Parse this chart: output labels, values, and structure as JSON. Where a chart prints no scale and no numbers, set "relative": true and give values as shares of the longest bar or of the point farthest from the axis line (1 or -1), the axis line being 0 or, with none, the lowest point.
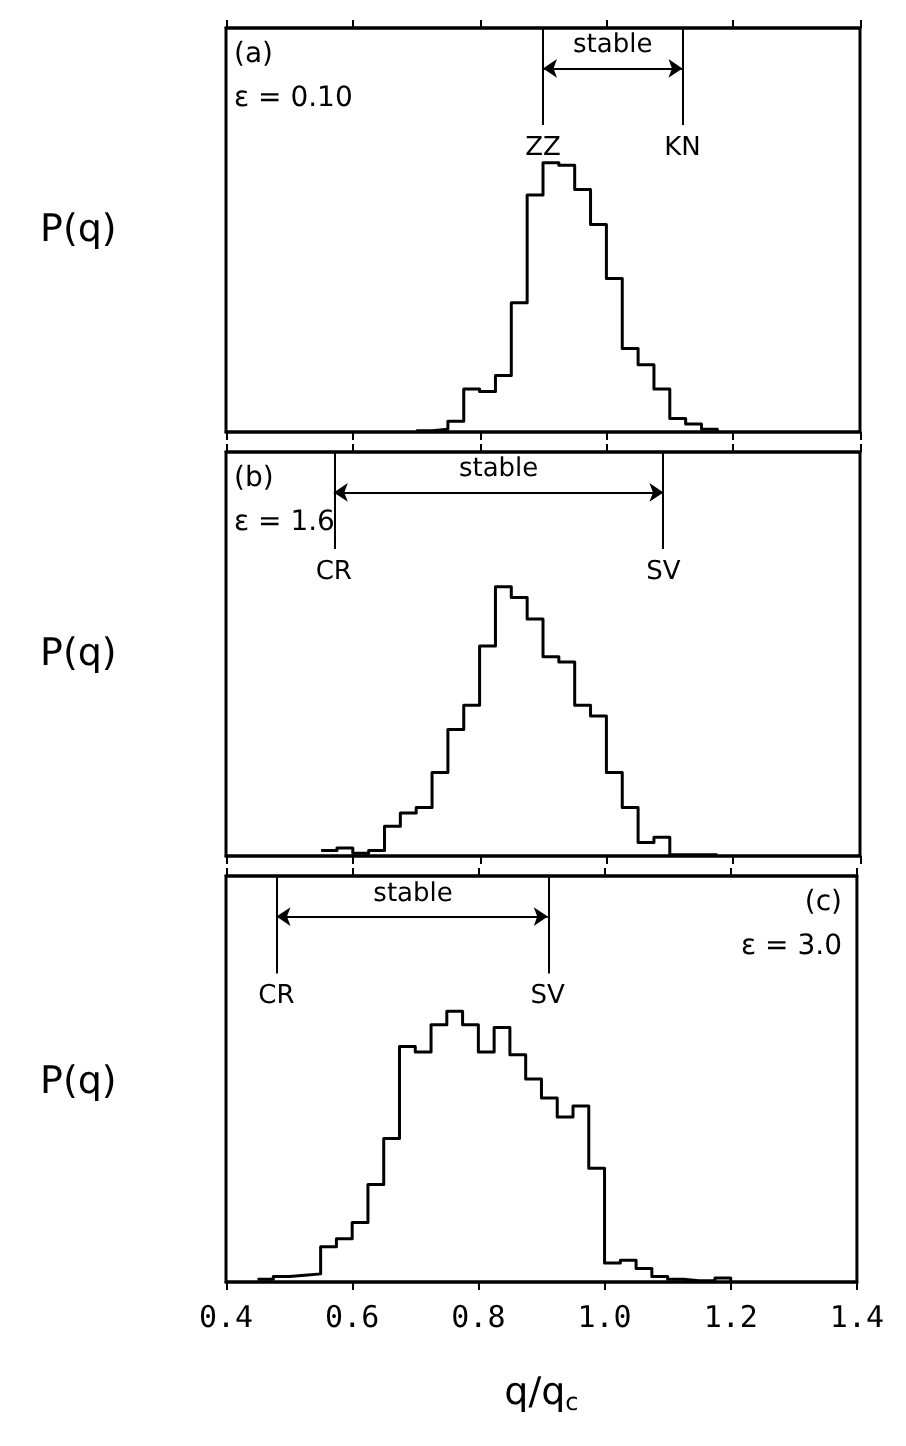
{
  "chart_data": [
    {
      "type": "step",
      "relative": true,
      "color": "#000000",
      "ylabel": "P(q)",
      "xlim": [
        0.4,
        1.4
      ],
      "xticks": [
        0.4,
        0.6,
        0.8,
        1.0,
        1.2,
        1.4
      ],
      "tick_labels": false,
      "x": [
        0.7,
        0.725,
        0.75,
        0.775,
        0.8,
        0.825,
        0.85,
        0.875,
        0.9,
        0.925,
        0.95,
        0.975,
        1.0,
        1.025,
        1.05,
        1.075,
        1.1,
        1.125,
        1.15,
        1.175
      ],
      "values": [
        0.005,
        0.01,
        0.04,
        0.16,
        0.15,
        0.21,
        0.48,
        0.88,
        1.0,
        0.99,
        0.9,
        0.77,
        0.57,
        0.31,
        0.25,
        0.16,
        0.05,
        0.03,
        0.01,
        0
      ],
      "ref_lines": [
        {
          "axis": "x",
          "value": 0.9,
          "label": "ZZ"
        },
        {
          "axis": "x",
          "value": 1.12,
          "label": "KN"
        }
      ],
      "annotations": [
        "(a)",
        "ε = 0.10",
        "stable"
      ]
    },
    {
      "type": "step",
      "relative": true,
      "color": "#000000",
      "ylabel": "P(q)",
      "xlim": [
        0.4,
        1.4
      ],
      "xticks": [
        0.4,
        0.6,
        0.8,
        1.0,
        1.2,
        1.4
      ],
      "tick_labels": false,
      "x": [
        0.55,
        0.575,
        0.6,
        0.625,
        0.65,
        0.675,
        0.7,
        0.725,
        0.75,
        0.775,
        0.8,
        0.825,
        0.85,
        0.875,
        0.9,
        0.925,
        0.95,
        0.975,
        1.0,
        1.025,
        1.05,
        1.075,
        1.1,
        1.125,
        1.15,
        1.175
      ],
      "values": [
        0.02,
        0.03,
        0.01,
        0.02,
        0.11,
        0.16,
        0.18,
        0.31,
        0.47,
        0.56,
        0.78,
        1.0,
        0.96,
        0.88,
        0.74,
        0.72,
        0.56,
        0.52,
        0.31,
        0.18,
        0.05,
        0.07,
        0.005,
        0.005,
        0.005,
        0
      ],
      "ref_lines": [
        {
          "axis": "x",
          "value": 0.57,
          "label": "CR"
        },
        {
          "axis": "x",
          "value": 1.09,
          "label": "SV"
        }
      ],
      "annotations": [
        "(b)",
        "ε = 1.6",
        "stable"
      ]
    },
    {
      "type": "step",
      "relative": true,
      "color": "#000000",
      "ylabel": "P(q)",
      "xlabel": "q/q$_{c}$",
      "xlim": [
        0.4,
        1.4
      ],
      "xticks": [
        0.4,
        0.6,
        0.8,
        {
          "value": 1.0,
          "label": "1.0"
        },
        1.2,
        1.4
      ],
      "tick_labels": "x",
      "x": [
        0.45,
        0.475,
        0.5,
        0.525,
        0.55,
        0.575,
        0.6,
        0.625,
        0.65,
        0.675,
        0.7,
        0.725,
        0.75,
        0.775,
        0.8,
        0.825,
        0.85,
        0.875,
        0.9,
        0.925,
        0.95,
        0.975,
        1.0,
        1.025,
        1.05,
        1.075,
        1.1,
        1.125,
        1.15,
        1.175,
        1.2
      ],
      "values": [
        0.01,
        0.02,
        0.025,
        0.03,
        0.13,
        0.16,
        0.22,
        0.36,
        0.53,
        0.87,
        0.85,
        0.95,
        1.0,
        0.95,
        0.85,
        0.94,
        0.84,
        0.75,
        0.68,
        0.61,
        0.65,
        0.42,
        0.07,
        0.08,
        0.05,
        0.02,
        0.01,
        0.005,
        0.005,
        0.015,
        0
      ],
      "ref_lines": [
        {
          "axis": "x",
          "value": 0.48,
          "label": "CR"
        },
        {
          "axis": "x",
          "value": 0.91,
          "label": "SV"
        }
      ],
      "annotations": [
        "(c)",
        "ε = 3.0",
        "stable"
      ]
    }
  ]
}
